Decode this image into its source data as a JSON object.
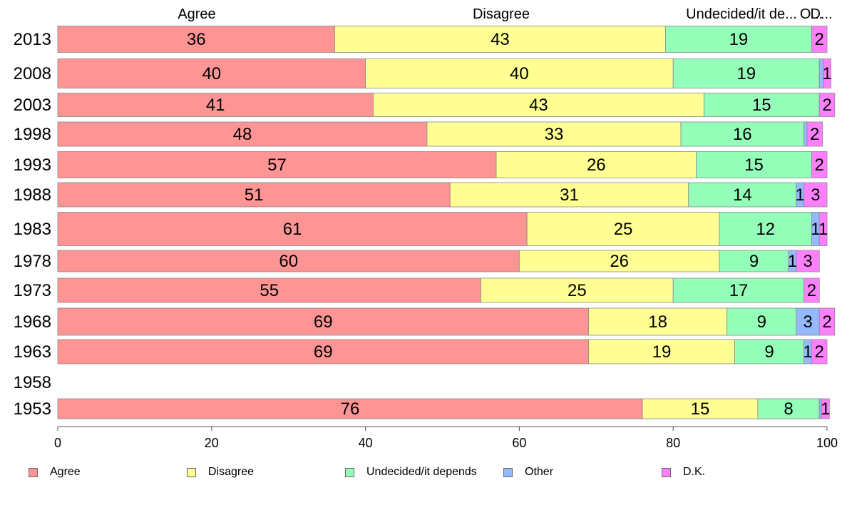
{
  "chart_data": {
    "type": "bar",
    "orientation": "horizontal",
    "stacked": true,
    "categories": [
      "2013",
      "2008",
      "2003",
      "1998",
      "1993",
      "1988",
      "1983",
      "1978",
      "1973",
      "1968",
      "1963",
      "1958",
      "1953"
    ],
    "series": [
      {
        "name": "Agree",
        "color": "#ff9494",
        "values": [
          36,
          40,
          41,
          48,
          57,
          51,
          61,
          60,
          55,
          69,
          69,
          null,
          76
        ]
      },
      {
        "name": "Disagree",
        "color": "#ffff94",
        "values": [
          43,
          40,
          43,
          33,
          26,
          31,
          25,
          26,
          25,
          18,
          19,
          null,
          15
        ]
      },
      {
        "name": "Undecided/it depends",
        "color": "#94ffb9",
        "values": [
          19,
          19,
          15,
          16,
          15,
          14,
          12,
          9,
          17,
          9,
          9,
          null,
          8
        ]
      },
      {
        "name": "Other",
        "color": "#94b9ff",
        "values": [
          0,
          0.5,
          0,
          0.4,
          0,
          1,
          1,
          1,
          0,
          3,
          1,
          null,
          0.3
        ]
      },
      {
        "name": "D.K.",
        "color": "#ff80ff",
        "values": [
          2,
          1,
          2,
          2,
          2,
          3,
          1,
          3,
          2,
          2,
          2,
          null,
          1
        ]
      }
    ],
    "segment_labels": [
      [
        "36",
        "43",
        "19",
        "",
        "2"
      ],
      [
        "40",
        "40",
        "19",
        "",
        "1"
      ],
      [
        "41",
        "43",
        "15",
        "",
        "2"
      ],
      [
        "48",
        "33",
        "16",
        "",
        "2"
      ],
      [
        "57",
        "26",
        "15",
        "",
        "2"
      ],
      [
        "51",
        "31",
        "14",
        "1",
        "3"
      ],
      [
        "61",
        "25",
        "12",
        "1",
        "1"
      ],
      [
        "60",
        "26",
        "9",
        "1",
        "3"
      ],
      [
        "55",
        "25",
        "17",
        "",
        "2"
      ],
      [
        "69",
        "18",
        "9",
        "3",
        "2"
      ],
      [
        "69",
        "19",
        "9",
        "1",
        "2"
      ],
      [
        "",
        "",
        "",
        "",
        ""
      ],
      [
        "76",
        "15",
        "8",
        "",
        "1"
      ]
    ],
    "top_labels": [
      "Agree",
      "Disagree",
      "Undecided/it de...",
      "O...",
      "D..."
    ],
    "xlim": [
      0,
      100
    ],
    "xticks": [
      "0",
      "20",
      "40",
      "60",
      "80",
      "100"
    ],
    "legend_position": "bottom"
  },
  "legend": {
    "items": [
      {
        "label": "Agree",
        "color": "#ff9494"
      },
      {
        "label": "Disagree",
        "color": "#ffff94"
      },
      {
        "label": "Undecided/it depends",
        "color": "#94ffb9"
      },
      {
        "label": "Other",
        "color": "#94b9ff"
      },
      {
        "label": "D.K.",
        "color": "#ff80ff"
      }
    ]
  }
}
